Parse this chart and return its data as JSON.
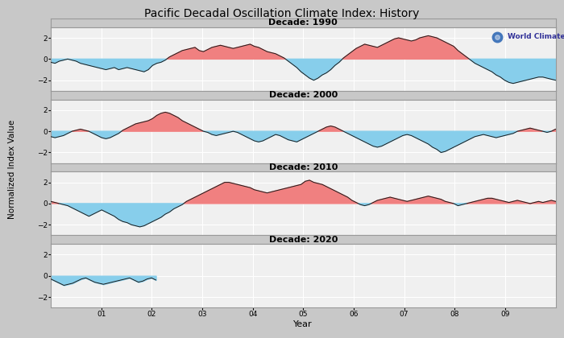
{
  "title": "Pacific Decadal Oscillation Climate Index: History",
  "ylabel": "Normalized Index Value",
  "xlabel": "Year",
  "decades": [
    "1990",
    "2000",
    "2010",
    "2020"
  ],
  "positive_color": "#F08080",
  "negative_color": "#87CEEB",
  "line_color": "#1a1a1a",
  "fig_bg_color": "#c8c8c8",
  "header_bg_color": "#c8c8c8",
  "plot_bg_color": "#f0f0f0",
  "grid_color": "#ffffff",
  "ylim": [
    -3,
    3
  ],
  "yticks": [
    -2,
    0,
    2
  ],
  "watermark_text": "World Climate Service",
  "title_fontsize": 10,
  "label_fontsize": 8,
  "pdo_1990": [
    -0.3,
    -0.4,
    -0.2,
    -0.1,
    0.0,
    -0.1,
    -0.2,
    -0.4,
    -0.5,
    -0.6,
    -0.7,
    -0.8,
    -0.9,
    -1.0,
    -0.9,
    -0.8,
    -1.0,
    -0.9,
    -0.8,
    -0.9,
    -1.0,
    -1.1,
    -1.2,
    -1.0,
    -0.6,
    -0.4,
    -0.3,
    -0.1,
    0.2,
    0.4,
    0.6,
    0.8,
    0.9,
    1.0,
    1.1,
    0.8,
    0.7,
    0.9,
    1.1,
    1.2,
    1.3,
    1.2,
    1.1,
    1.0,
    1.1,
    1.2,
    1.3,
    1.4,
    1.2,
    1.1,
    0.9,
    0.7,
    0.6,
    0.5,
    0.3,
    0.1,
    -0.2,
    -0.5,
    -0.8,
    -1.2,
    -1.5,
    -1.8,
    -2.0,
    -1.8,
    -1.5,
    -1.3,
    -1.0,
    -0.6,
    -0.3,
    0.1,
    0.4,
    0.7,
    1.0,
    1.2,
    1.4,
    1.3,
    1.2,
    1.1,
    1.3,
    1.5,
    1.7,
    1.9,
    2.0,
    1.9,
    1.8,
    1.7,
    1.8,
    2.0,
    2.1,
    2.2,
    2.1,
    2.0,
    1.8,
    1.6,
    1.4,
    1.2,
    0.8,
    0.5,
    0.2,
    -0.1,
    -0.4,
    -0.6,
    -0.8,
    -1.0,
    -1.2,
    -1.5,
    -1.7,
    -2.0,
    -2.2,
    -2.3,
    -2.2,
    -2.1,
    -2.0,
    -1.9,
    -1.8,
    -1.7,
    -1.7,
    -1.8,
    -1.9,
    -2.0
  ],
  "pdo_2000": [
    -0.5,
    -0.6,
    -0.5,
    -0.4,
    -0.2,
    0.0,
    0.1,
    0.2,
    0.1,
    0.0,
    -0.2,
    -0.4,
    -0.6,
    -0.7,
    -0.6,
    -0.4,
    -0.2,
    0.1,
    0.3,
    0.5,
    0.7,
    0.8,
    0.9,
    1.0,
    1.2,
    1.5,
    1.7,
    1.8,
    1.7,
    1.5,
    1.3,
    1.0,
    0.8,
    0.6,
    0.4,
    0.2,
    0.0,
    -0.1,
    -0.3,
    -0.4,
    -0.3,
    -0.2,
    -0.1,
    0.0,
    -0.1,
    -0.3,
    -0.5,
    -0.7,
    -0.9,
    -1.0,
    -0.9,
    -0.7,
    -0.5,
    -0.3,
    -0.4,
    -0.6,
    -0.8,
    -0.9,
    -1.0,
    -0.8,
    -0.6,
    -0.4,
    -0.2,
    0.0,
    0.2,
    0.4,
    0.5,
    0.4,
    0.2,
    0.0,
    -0.2,
    -0.4,
    -0.6,
    -0.8,
    -1.0,
    -1.2,
    -1.4,
    -1.5,
    -1.4,
    -1.2,
    -1.0,
    -0.8,
    -0.6,
    -0.4,
    -0.3,
    -0.4,
    -0.6,
    -0.8,
    -1.0,
    -1.2,
    -1.5,
    -1.7,
    -2.0,
    -1.9,
    -1.7,
    -1.5,
    -1.3,
    -1.1,
    -0.9,
    -0.7,
    -0.5,
    -0.4,
    -0.3,
    -0.4,
    -0.5,
    -0.6,
    -0.5,
    -0.4,
    -0.3,
    -0.2,
    0.0,
    0.1,
    0.2,
    0.3,
    0.2,
    0.1,
    0.0,
    -0.1,
    0.0,
    0.2
  ],
  "pdo_2010": [
    0.2,
    0.1,
    0.0,
    -0.1,
    -0.2,
    -0.4,
    -0.6,
    -0.8,
    -1.0,
    -1.2,
    -1.0,
    -0.8,
    -0.6,
    -0.8,
    -1.0,
    -1.2,
    -1.5,
    -1.7,
    -1.8,
    -2.0,
    -2.1,
    -2.2,
    -2.1,
    -1.9,
    -1.7,
    -1.5,
    -1.3,
    -1.0,
    -0.8,
    -0.5,
    -0.3,
    -0.1,
    0.2,
    0.4,
    0.6,
    0.8,
    1.0,
    1.2,
    1.4,
    1.6,
    1.8,
    2.0,
    2.0,
    1.9,
    1.8,
    1.7,
    1.6,
    1.5,
    1.3,
    1.2,
    1.1,
    1.0,
    1.1,
    1.2,
    1.3,
    1.4,
    1.5,
    1.6,
    1.7,
    1.8,
    2.1,
    2.2,
    2.0,
    1.9,
    1.8,
    1.6,
    1.4,
    1.2,
    1.0,
    0.8,
    0.6,
    0.3,
    0.1,
    -0.1,
    -0.2,
    -0.1,
    0.1,
    0.3,
    0.4,
    0.5,
    0.6,
    0.5,
    0.4,
    0.3,
    0.2,
    0.3,
    0.4,
    0.5,
    0.6,
    0.7,
    0.6,
    0.5,
    0.4,
    0.2,
    0.1,
    0.0,
    -0.2,
    -0.1,
    0.0,
    0.1,
    0.2,
    0.3,
    0.4,
    0.5,
    0.5,
    0.4,
    0.3,
    0.2,
    0.1,
    0.2,
    0.3,
    0.2,
    0.1,
    0.0,
    0.1,
    0.2,
    0.1,
    0.2,
    0.3,
    0.2
  ],
  "pdo_2020_values": [
    -0.3,
    -0.5,
    -0.7,
    -0.9,
    -0.8,
    -0.7,
    -0.5,
    -0.3,
    -0.2,
    -0.4,
    -0.6,
    -0.7,
    -0.8,
    -0.7,
    -0.6,
    -0.5,
    -0.4,
    -0.3,
    -0.2,
    -0.4,
    -0.6,
    -0.5,
    -0.3,
    -0.2,
    -0.4
  ],
  "n_months_2020": 25
}
